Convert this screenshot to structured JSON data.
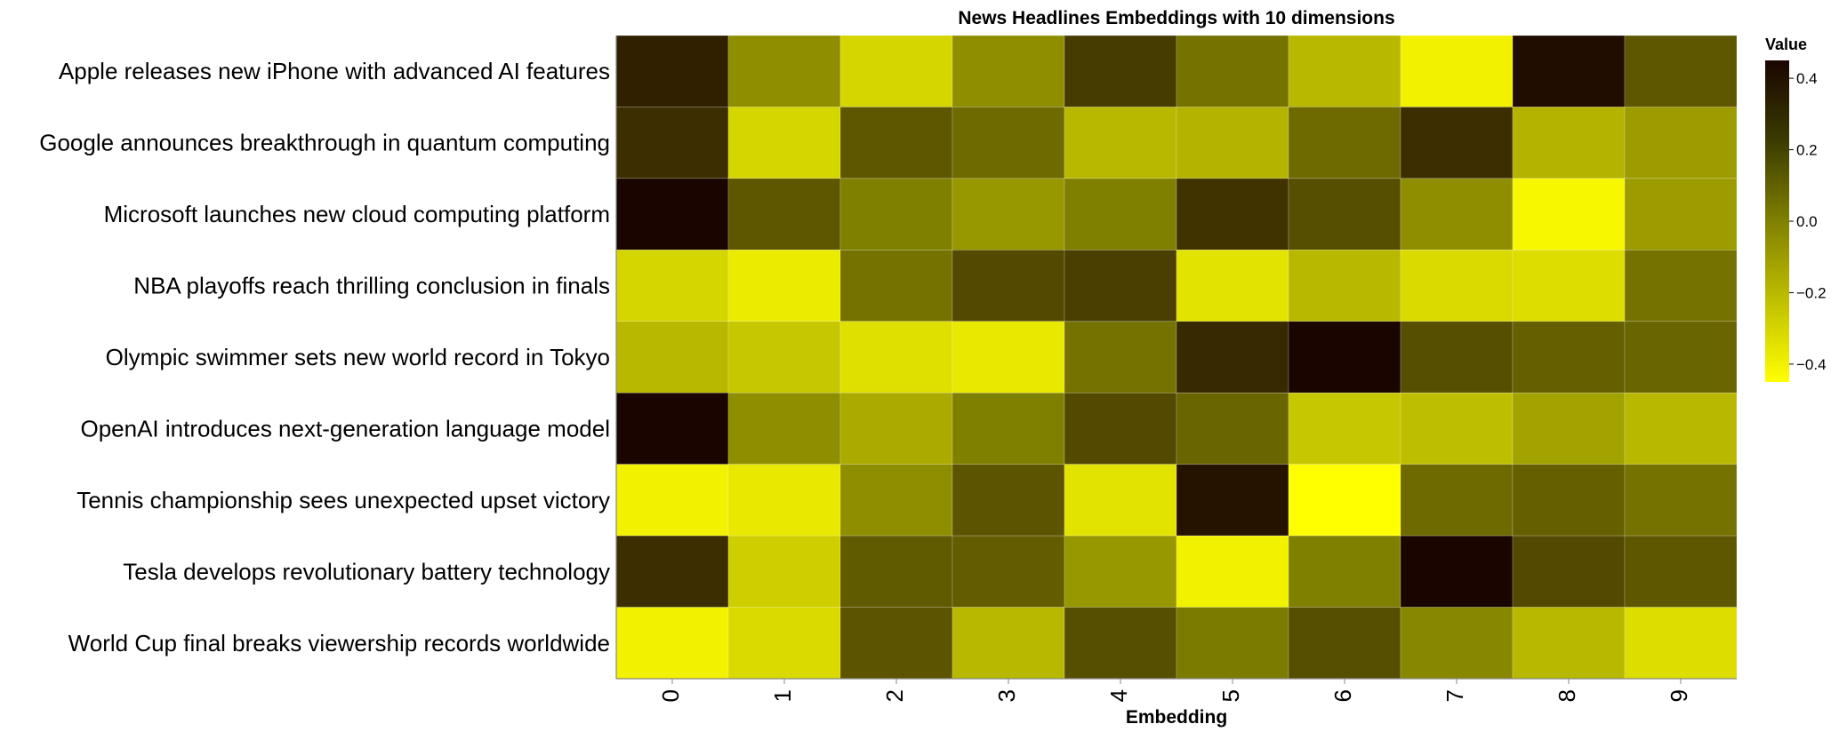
{
  "chart_data": {
    "type": "heatmap",
    "title": "News Headlines Embeddings with 10 dimensions",
    "xlabel": "Embedding",
    "ylabel": "",
    "legend_title": "Value",
    "legend_position": "right",
    "color_range": [
      -0.45,
      0.45
    ],
    "color_scale": {
      "low": "#ffff00",
      "mid": "#808000",
      "high": "#1a0500"
    },
    "legend_ticks": [
      0.4,
      0.2,
      0.0,
      -0.2,
      -0.4
    ],
    "legend_tick_labels": [
      "0.4",
      "0.2",
      "0.0",
      "−0.2",
      "−0.4"
    ],
    "x": [
      "0",
      "1",
      "2",
      "3",
      "4",
      "5",
      "6",
      "7",
      "8",
      "9"
    ],
    "y": [
      "Apple releases new iPhone with advanced AI features",
      "Google announces breakthrough in quantum computing",
      "Microsoft launches new cloud computing platform",
      "NBA playoffs reach thrilling conclusion in finals",
      "Olympic swimmer sets new world record in Tokyo",
      "OpenAI introduces next-generation language model",
      "Tennis championship sees unexpected upset victory",
      "Tesla develops revolutionary battery technology",
      "World Cup final breaks viewership records worldwide"
    ],
    "values": [
      [
        0.35,
        -0.05,
        -0.3,
        -0.05,
        0.25,
        0.05,
        -0.2,
        -0.4,
        0.42,
        0.15
      ],
      [
        0.3,
        -0.3,
        0.15,
        0.08,
        -0.2,
        -0.18,
        0.08,
        0.3,
        -0.18,
        -0.1
      ],
      [
        0.45,
        0.15,
        0.0,
        -0.08,
        0.0,
        0.28,
        0.18,
        -0.05,
        -0.42,
        -0.1
      ],
      [
        -0.3,
        -0.38,
        0.05,
        0.2,
        0.24,
        -0.35,
        -0.2,
        -0.32,
        -0.33,
        0.05
      ],
      [
        -0.2,
        -0.25,
        -0.34,
        -0.37,
        0.05,
        0.32,
        0.45,
        0.18,
        0.12,
        0.1
      ],
      [
        0.45,
        -0.05,
        -0.15,
        0.0,
        0.2,
        0.1,
        -0.25,
        -0.22,
        -0.12,
        -0.2
      ],
      [
        -0.4,
        -0.37,
        -0.05,
        0.16,
        -0.35,
        0.4,
        -0.45,
        0.08,
        0.12,
        0.05
      ],
      [
        0.3,
        -0.28,
        0.14,
        0.13,
        -0.08,
        -0.4,
        0.0,
        0.45,
        0.2,
        0.15
      ],
      [
        -0.4,
        -0.32,
        0.16,
        -0.2,
        0.18,
        0.02,
        0.18,
        -0.03,
        -0.2,
        -0.33
      ]
    ]
  }
}
